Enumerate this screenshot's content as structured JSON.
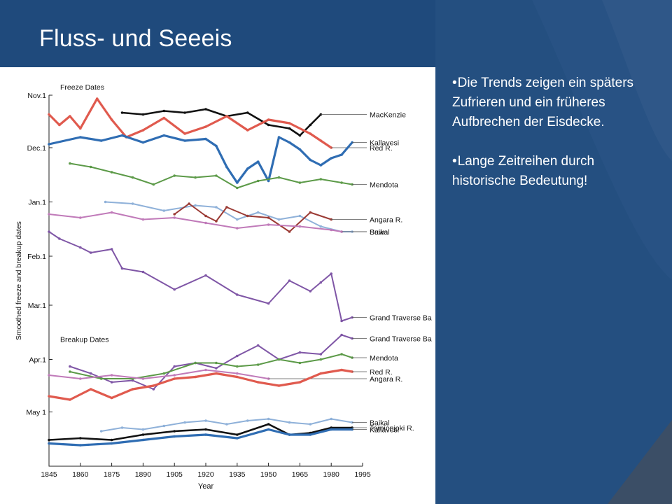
{
  "slide": {
    "title": "Fluss- und Seeeis",
    "bullets": [
      "Die Trends zeigen ein späters Zufrieren und ein früheres Aufbrechen der Eisdecke.",
      "Lange Zeitreihen durch historische Bedeutung!"
    ],
    "bullet_glyph": "•",
    "colors": {
      "background": "#1f4a7c",
      "title_text": "#ffffff",
      "accent_band": "#3c5a86"
    }
  },
  "chart_data": {
    "type": "line",
    "title": "",
    "xlabel": "Year",
    "ylabel": "Smoothed freeze and breakup dates",
    "xlim": [
      1845,
      1995
    ],
    "x_ticks": [
      1845,
      1860,
      1875,
      1890,
      1905,
      1920,
      1935,
      1950,
      1965,
      1980,
      1995
    ],
    "y_tick_labels": [
      "Nov.1",
      "Dec.1",
      "Jan.1",
      "Feb.1",
      "Mar.1",
      "Apr.1",
      "May 1"
    ],
    "y_direction": "later dates plotted lower (top = Nov.1, bottom = after May 1)",
    "panels": [
      "Freeze Dates",
      "Breakup Dates"
    ],
    "grid": false,
    "legend": "series labeled at right end with leader lines",
    "series": [
      {
        "name": "MacKenzie",
        "group": "freeze",
        "color": "#111111",
        "x": [
          1880,
          1890,
          1900,
          1910,
          1920,
          1930,
          1940,
          1950,
          1960,
          1965,
          1970,
          1975
        ],
        "y": [
          "Nov 11",
          "Nov 12",
          "Nov 10",
          "Nov 11",
          "Nov 9",
          "Nov 13",
          "Nov 11",
          "Nov 18",
          "Nov 20",
          "Nov 24",
          "Nov 18",
          "Nov 12"
        ]
      },
      {
        "name": "Red R.",
        "group": "freeze",
        "color": "#e05a4e",
        "x": [
          1845,
          1850,
          1855,
          1860,
          1868,
          1875,
          1882,
          1890,
          1900,
          1910,
          1920,
          1930,
          1940,
          1950,
          1960,
          1970,
          1975,
          1980
        ],
        "y": [
          "Nov 12",
          "Nov 18",
          "Nov 13",
          "Nov 20",
          "Nov 3",
          "Nov 15",
          "Nov 25",
          "Nov 21",
          "Nov 14",
          "Nov 23",
          "Nov 19",
          "Nov 13",
          "Nov 21",
          "Nov 15",
          "Nov 17",
          "Nov 23",
          "Nov 27",
          "Dec 1"
        ]
      },
      {
        "name": "Kallavesi",
        "group": "freeze",
        "color": "#2f6db3",
        "x": [
          1845,
          1860,
          1870,
          1880,
          1890,
          1900,
          1910,
          1920,
          1925,
          1930,
          1935,
          1940,
          1945,
          1950,
          1955,
          1960,
          1965,
          1970,
          1975,
          1980,
          1985,
          1990
        ],
        "y": [
          "Nov 29",
          "Nov 25",
          "Nov 27",
          "Nov 24",
          "Nov 28",
          "Nov 24",
          "Nov 27",
          "Nov 26",
          "Nov 30",
          "Dec 12",
          "Dec 21",
          "Dec 13",
          "Dec 9",
          "Dec 20",
          "Nov 25",
          "Nov 28",
          "Dec 2",
          "Dec 8",
          "Dec 11",
          "Dec 7",
          "Dec 5",
          "Nov 28"
        ]
      },
      {
        "name": "Mendota",
        "group": "freeze",
        "color": "#5c9a48",
        "x": [
          1855,
          1865,
          1875,
          1885,
          1895,
          1905,
          1915,
          1925,
          1935,
          1945,
          1955,
          1965,
          1975,
          1985,
          1990
        ],
        "y": [
          "Dec 10",
          "Dec 12",
          "Dec 15",
          "Dec 18",
          "Dec 22",
          "Dec 17",
          "Dec 18",
          "Dec 17",
          "Dec 24",
          "Dec 20",
          "Dec 18",
          "Dec 21",
          "Dec 19",
          "Dec 21",
          "Dec 22"
        ]
      },
      {
        "name": "Suwa",
        "group": "freeze",
        "color": "#8fb1d9",
        "x": [
          1872,
          1885,
          1900,
          1915,
          1925,
          1935,
          1945,
          1955,
          1965,
          1975,
          1985,
          1990
        ],
        "y": [
          "Jan 1",
          "Jan 2",
          "Jan 6",
          "Jan 3",
          "Jan 4",
          "Jan 11",
          "Jan 7",
          "Jan 11",
          "Jan 9",
          "Jan 15",
          "Jan 18",
          "Jan 18"
        ]
      },
      {
        "name": "Angara R.",
        "group": "freeze",
        "color": "#9b3a34",
        "x": [
          1905,
          1912,
          1920,
          1925,
          1930,
          1940,
          1950,
          1960,
          1970,
          1980
        ],
        "y": [
          "Jan 8",
          "Jan 2",
          "Jan 9",
          "Jan 12",
          "Jan 4",
          "Jan 9",
          "Jan 10",
          "Jan 18",
          "Jan 7",
          "Jan 11"
        ]
      },
      {
        "name": "Baikal",
        "group": "freeze",
        "color": "#c07ab9",
        "x": [
          1845,
          1860,
          1875,
          1890,
          1905,
          1920,
          1935,
          1950,
          1965,
          1980,
          1985
        ],
        "y": [
          "Jan 8",
          "Jan 10",
          "Jan 7",
          "Jan 11",
          "Jan 10",
          "Jan 13",
          "Jan 16",
          "Jan 14",
          "Jan 15",
          "Jan 17",
          "Jan 18"
        ]
      },
      {
        "name": "Grand Traverse Ba",
        "group": "freeze",
        "color": "#7f56a6",
        "x": [
          1845,
          1850,
          1860,
          1865,
          1875,
          1880,
          1890,
          1905,
          1920,
          1935,
          1950,
          1960,
          1970,
          1975,
          1980,
          1985,
          1990
        ],
        "y": [
          "Jan 18",
          "Jan 22",
          "Jan 27",
          "Jan 30",
          "Jan 28",
          "Feb 8",
          "Feb 10",
          "Feb 20",
          "Feb 12",
          "Feb 23",
          "Feb 28",
          "Feb 15",
          "Feb 21",
          "Feb 16",
          "Feb 11",
          "Mar 10",
          "Mar 8"
        ]
      },
      {
        "name": "Grand Traverse Ba",
        "group": "breakup",
        "color": "#7f56a6",
        "x": [
          1855,
          1865,
          1875,
          1885,
          1895,
          1905,
          1915,
          1925,
          1935,
          1945,
          1955,
          1965,
          1975,
          1985,
          1990
        ],
        "y": [
          "Apr 5",
          "Apr 9",
          "Apr 14",
          "Apr 13",
          "Apr 18",
          "Apr 5",
          "Apr 3",
          "Apr 6",
          "Mar 30",
          "Mar 24",
          "Apr 1",
          "Mar 28",
          "Mar 29",
          "Mar 18",
          "Mar 20"
        ]
      },
      {
        "name": "Mendota",
        "group": "breakup",
        "color": "#5c9a48",
        "x": [
          1855,
          1870,
          1885,
          1900,
          1915,
          1925,
          1935,
          1945,
          1955,
          1965,
          1975,
          1985,
          1990
        ],
        "y": [
          "Apr 8",
          "Apr 12",
          "Apr 12",
          "Apr 9",
          "Apr 3",
          "Apr 3",
          "Apr 5",
          "Apr 4",
          "Apr 1",
          "Apr 3",
          "Apr 1",
          "Mar 29",
          "Mar 31"
        ]
      },
      {
        "name": "Angara R.",
        "group": "breakup",
        "color": "#c07ab9",
        "x": [
          1845,
          1860,
          1875,
          1890,
          1905,
          1920,
          1935,
          1950
        ],
        "y": [
          "Apr 10",
          "Apr 12",
          "Apr 10",
          "Apr 12",
          "Apr 10",
          "Apr 7",
          "Apr 9",
          "Apr 12"
        ]
      },
      {
        "name": "Red R.",
        "group": "breakup",
        "color": "#e05a4e",
        "x": [
          1845,
          1855,
          1865,
          1875,
          1885,
          1895,
          1905,
          1915,
          1925,
          1935,
          1945,
          1955,
          1965,
          1975,
          1985,
          1990
        ],
        "y": [
          "Apr 22",
          "Apr 24",
          "Apr 18",
          "Apr 23",
          "Apr 18",
          "Apr 16",
          "Apr 12",
          "Apr 11",
          "Apr 9",
          "Apr 11",
          "Apr 14",
          "Apr 16",
          "Apr 14",
          "Apr 9",
          "Apr 7",
          "Apr 8"
        ]
      },
      {
        "name": "Baikal",
        "group": "breakup",
        "color": "#8fb1d9",
        "x": [
          1870,
          1880,
          1890,
          1900,
          1910,
          1920,
          1930,
          1940,
          1950,
          1960,
          1970,
          1980,
          1990
        ],
        "y": [
          "May 12",
          "May 10",
          "May 11",
          "May 9",
          "May 7",
          "May 6",
          "May 8",
          "May 6",
          "May 5",
          "May 7",
          "May 8",
          "May 5",
          "May 7"
        ]
      },
      {
        "name": "Tornionjoki R.",
        "group": "breakup",
        "color": "#111111",
        "x": [
          1845,
          1860,
          1875,
          1890,
          1905,
          1920,
          1935,
          1950,
          1960,
          1970,
          1980,
          1990
        ],
        "y": [
          "May 17",
          "May 16",
          "May 17",
          "May 14",
          "May 12",
          "May 11",
          "May 14",
          "May 8",
          "May 14",
          "May 13",
          "May 10",
          "May 10"
        ]
      },
      {
        "name": "Kallavesi",
        "group": "breakup",
        "color": "#2f6db3",
        "x": [
          1845,
          1860,
          1875,
          1890,
          1905,
          1920,
          1935,
          1950,
          1960,
          1970,
          1980,
          1990
        ],
        "y": [
          "May 19",
          "May 20",
          "May 19",
          "May 17",
          "May 15",
          "May 14",
          "May 16",
          "May 11",
          "May 14",
          "May 14",
          "May 11",
          "May 11"
        ]
      }
    ]
  }
}
